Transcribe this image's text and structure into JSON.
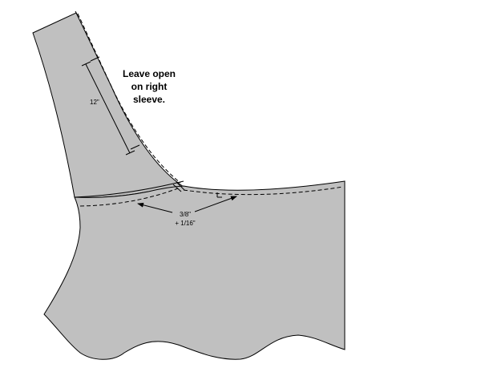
{
  "diagram": {
    "note_lines": [
      "Leave open",
      "on right",
      "sleeve."
    ],
    "seam_length_label": "12\"",
    "seam_allowance_lines": [
      "3/8\"",
      "+ 1/16\""
    ],
    "colors": {
      "fabric": "#c0c0c0",
      "outline": "#000000",
      "background": "#ffffff"
    }
  }
}
